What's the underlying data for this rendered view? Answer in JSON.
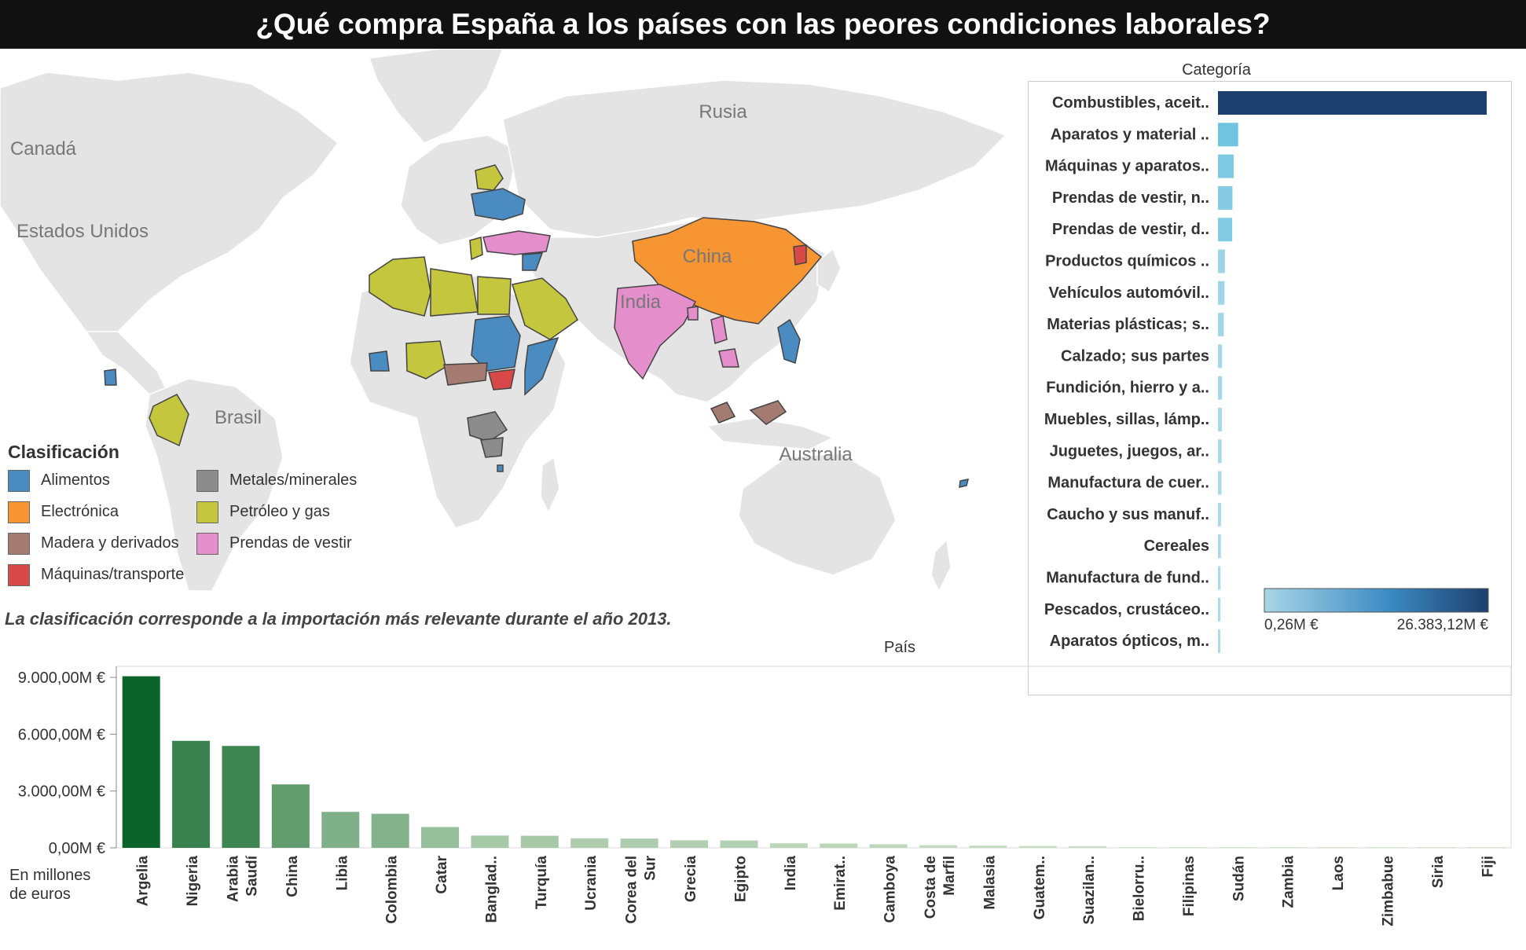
{
  "title": "¿Qué compra España a los países con las peores condiciones laborales?",
  "map": {
    "labels": [
      "Canadá",
      "Estados Unidos",
      "Rusia",
      "China",
      "India",
      "Brasil",
      "Australia"
    ],
    "legend": {
      "title": "Clasificación",
      "items": [
        {
          "label": "Alimentos",
          "color": "#4a8bc2"
        },
        {
          "label": "Metales/minerales",
          "color": "#8c8c8c"
        },
        {
          "label": "Electrónica",
          "color": "#f79532"
        },
        {
          "label": "Petróleo y gas",
          "color": "#c4c63d"
        },
        {
          "label": "Madera y derivados",
          "color": "#a47b70"
        },
        {
          "label": "Prendas de vestir",
          "color": "#e48fcb"
        },
        {
          "label": "Máquinas/transporte",
          "color": "#d94848"
        }
      ]
    },
    "note": "La clasificación corresponde a la importación más relevante durante el año 2013."
  },
  "chart_data": [
    {
      "type": "bar",
      "orientation": "horizontal",
      "title": "Categoría",
      "categories": [
        "Combustibles, aceit..",
        "Aparatos y material ..",
        "Máquinas y aparatos..",
        "Prendas de vestir, n..",
        "Prendas de vestir, d..",
        "Productos químicos ..",
        "Vehículos automóvil..",
        "Materias plásticas; s..",
        "Calzado; sus partes",
        "Fundición, hierro y a..",
        "Muebles, sillas, lámp..",
        "Juguetes, juegos, ar..",
        "Manufactura de cuer..",
        "Caucho y sus manuf..",
        "Cereales",
        "Manufactura de fund..",
        "Pescados, crustáceo..",
        "Aparatos ópticos, m.."
      ],
      "values": [
        26383,
        1980,
        1550,
        1420,
        1400,
        680,
        640,
        560,
        400,
        400,
        380,
        360,
        350,
        300,
        290,
        250,
        240,
        220
      ],
      "unit": "millones de euros",
      "color_scale": {
        "min_label": "0,26M €",
        "max_label": "26.383,12M €",
        "min_color": "#a8d6e6",
        "max_color": "#1d3f6e"
      }
    },
    {
      "type": "bar",
      "title": "País",
      "categories": [
        "Argelia",
        "Nigeria",
        "Arabia Saudí",
        "China",
        "Libia",
        "Colombia",
        "Catar",
        "Banglad..",
        "Turquía",
        "Ucrania",
        "Corea del Sur",
        "Grecia",
        "Egipto",
        "India",
        "Emirat..",
        "Camboya",
        "Costa de Marfil",
        "Malasia",
        "Guatem..",
        "Suazilan..",
        "Bielorru..",
        "Filipinas",
        "Sudán",
        "Zambia",
        "Laos",
        "Zimbabue",
        "Siria",
        "Fiji"
      ],
      "values": [
        9060,
        5650,
        5380,
        3350,
        1900,
        1800,
        1100,
        650,
        640,
        500,
        490,
        400,
        390,
        240,
        230,
        190,
        140,
        120,
        100,
        90,
        30,
        20,
        15,
        10,
        8,
        6,
        4,
        2
      ],
      "ylabel": "En millones de euros",
      "ylim": [
        0,
        9500
      ],
      "yticks": [
        0,
        3000,
        6000,
        9000
      ],
      "ytick_labels": [
        "0,00M €",
        "3.000,00M €",
        "6.000,00M €",
        "9.000,00M €"
      ]
    }
  ]
}
